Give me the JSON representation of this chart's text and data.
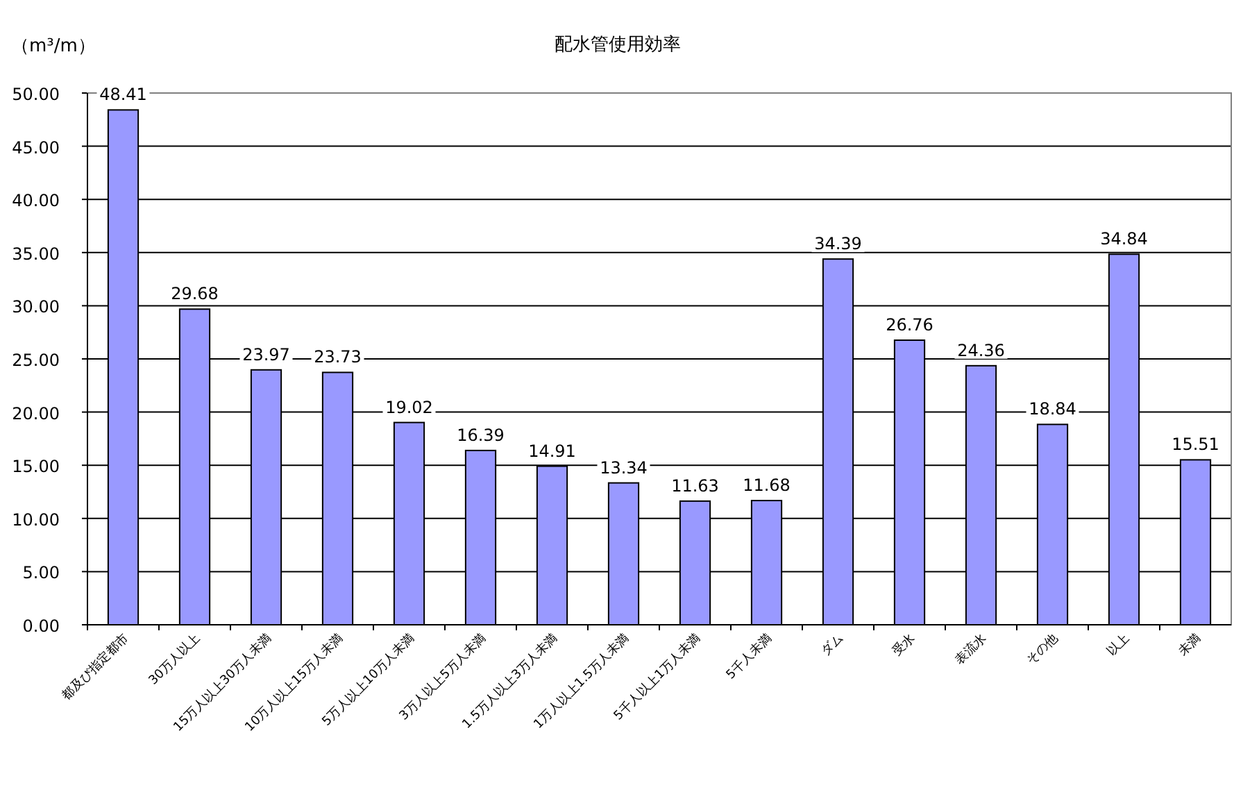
{
  "chart_data": {
    "type": "bar",
    "title": "配水管使用効率",
    "ylabel": "（m³/m）",
    "categories": [
      "都及び指定都市",
      "30万人以上",
      "15万人以上30万人未満",
      "10万人以上15万人未満",
      "5万人以上10万人未満",
      "3万人以上5万人未満",
      "1.5万人以上3万人未満",
      "1万人以上1.5万人未満",
      "5千人以上1万人未満",
      "5千人未満",
      "ダム",
      "受水",
      "表流水",
      "その他",
      "以上",
      "未満"
    ],
    "values": [
      48.41,
      29.68,
      23.97,
      23.73,
      19.02,
      16.39,
      14.91,
      13.34,
      11.63,
      11.68,
      34.39,
      26.76,
      24.36,
      18.84,
      34.84,
      15.51
    ],
    "color": "#9999ff",
    "data_labels": true,
    "grid": "y",
    "ylim": [
      0,
      50
    ],
    "yticks": [
      {
        "value": 0,
        "label": "0.00"
      },
      {
        "value": 5,
        "label": "5.00"
      },
      {
        "value": 10,
        "label": "10.00"
      },
      {
        "value": 15,
        "label": "15.00"
      },
      {
        "value": 20,
        "label": "20.00"
      },
      {
        "value": 25,
        "label": "25.00"
      },
      {
        "value": 30,
        "label": "30.00"
      },
      {
        "value": 35,
        "label": "35.00"
      },
      {
        "value": 40,
        "label": "40.00"
      },
      {
        "value": 45,
        "label": "45.00"
      },
      {
        "value": 50,
        "label": "50.00"
      }
    ]
  }
}
